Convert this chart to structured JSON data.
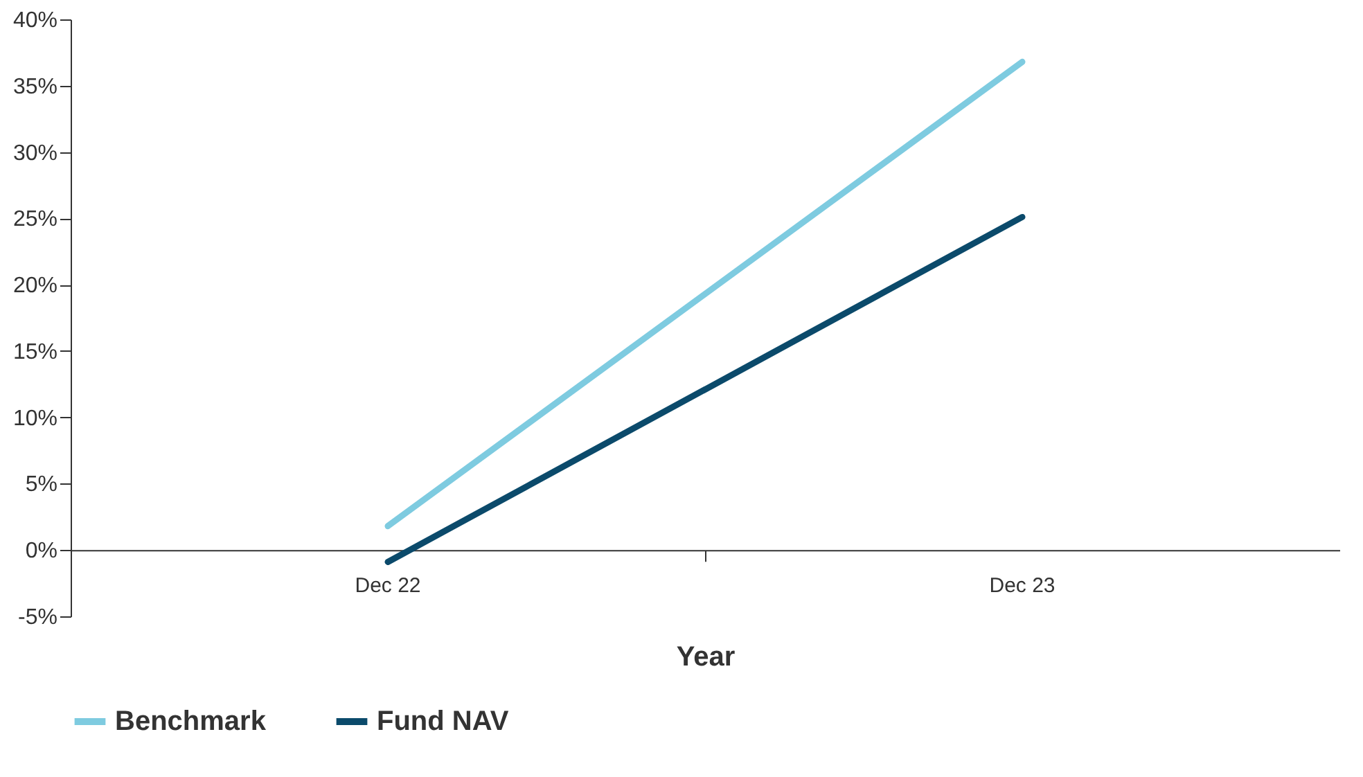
{
  "chart_data": {
    "type": "line",
    "xlabel": "Year",
    "categories": [
      "Dec 22",
      "Dec 23"
    ],
    "series": [
      {
        "name": "Benchmark",
        "color": "#7ecbe0",
        "values": [
          1.8,
          36.8
        ]
      },
      {
        "name": "Fund NAV",
        "color": "#0b4a6b",
        "values": [
          -0.9,
          25.1
        ]
      }
    ],
    "ylim": [
      -5,
      40
    ],
    "yticks": [
      {
        "value": -5,
        "label": "-5%"
      },
      {
        "value": 0,
        "label": "0%"
      },
      {
        "value": 5,
        "label": "5%"
      },
      {
        "value": 10,
        "label": "10%"
      },
      {
        "value": 15,
        "label": "15%"
      },
      {
        "value": 20,
        "label": "20%"
      },
      {
        "value": 25,
        "label": "25%"
      },
      {
        "value": 30,
        "label": "30%"
      },
      {
        "value": 35,
        "label": "35%"
      },
      {
        "value": 40,
        "label": "40%"
      }
    ],
    "grid": false,
    "legend": "bottom left",
    "marker": "none",
    "line_style": "solid"
  }
}
